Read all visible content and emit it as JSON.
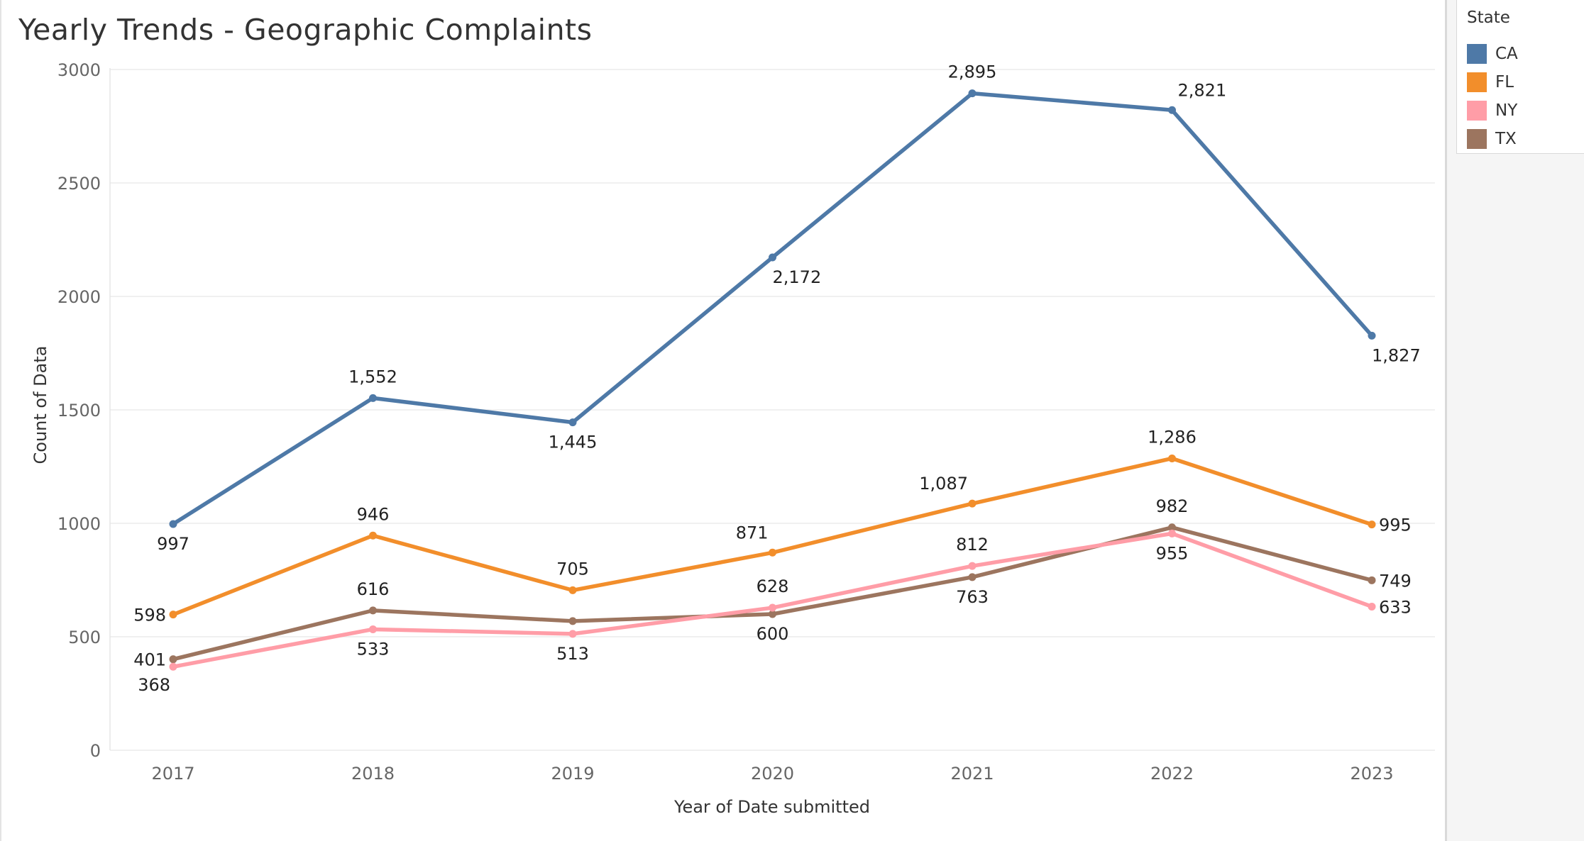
{
  "chart_data": {
    "type": "line",
    "title": "Yearly Trends - Geographic Complaints",
    "xlabel": "Year of Date submitted",
    "ylabel": "Count of Data",
    "categories": [
      "2017",
      "2018",
      "2019",
      "2020",
      "2021",
      "2022",
      "2023"
    ],
    "ylim": [
      0,
      3000
    ],
    "yticks": [
      "0",
      "500",
      "1000",
      "1500",
      "2000",
      "2500",
      "3000"
    ],
    "grid": true,
    "legend_position": "top-right",
    "legend_title": "State",
    "series": [
      {
        "name": "CA",
        "color": "#4e79a7",
        "values": [
          997,
          1552,
          1445,
          2172,
          2895,
          2821,
          1827
        ],
        "labels": [
          "997",
          "1,552",
          "1,445",
          "2,172",
          "2,895",
          "2,821",
          "1,827"
        ],
        "label_pos": [
          "below",
          "above",
          "below",
          "below-right",
          "above",
          "above-right",
          "below-right"
        ]
      },
      {
        "name": "FL",
        "color": "#f28e2b",
        "values": [
          598,
          946,
          705,
          871,
          1087,
          1286,
          995
        ],
        "labels": [
          "598",
          "946",
          "705",
          "871",
          "1,087",
          "1,286",
          "995"
        ],
        "label_pos": [
          "left",
          "above",
          "above",
          "above-left",
          "above-left",
          "above",
          "right"
        ]
      },
      {
        "name": "NY",
        "color": "#ff9da7",
        "values": [
          368,
          533,
          513,
          628,
          812,
          955,
          633
        ],
        "labels": [
          "368",
          "533",
          "513",
          "628",
          "812",
          "955",
          "633"
        ],
        "label_pos": [
          "below-left",
          "below",
          "below",
          "above",
          "above",
          "below",
          "right"
        ]
      },
      {
        "name": "TX",
        "color": "#9c755f",
        "values": [
          401,
          616,
          569,
          600,
          763,
          982,
          749
        ],
        "labels": [
          "401",
          "616",
          "",
          "600",
          "763",
          "982",
          "749"
        ],
        "label_pos": [
          "left",
          "above",
          "none",
          "below",
          "below",
          "above",
          "right"
        ]
      }
    ]
  }
}
